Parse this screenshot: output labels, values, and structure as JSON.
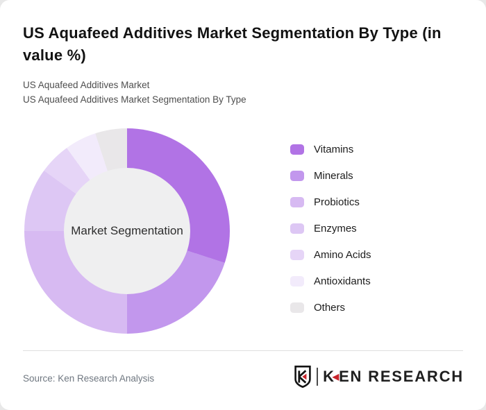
{
  "page": {
    "title": "US Aquafeed Additives Market Segmentation By Type (in value %)",
    "subtitle_line1": "US Aquafeed Additives Market",
    "subtitle_line2": "US Aquafeed Additives Market Segmentation By Type"
  },
  "chart_data": {
    "type": "pie",
    "donut": true,
    "title": "US Aquafeed Additives Market Segmentation By Type (in value %)",
    "center_label": "Market Segmentation",
    "categories": [
      "Vitamins",
      "Minerals",
      "Probiotics",
      "Enzymes",
      "Amino Acids",
      "Antioxidants",
      "Others"
    ],
    "values": [
      30,
      20,
      25,
      10,
      5,
      5,
      5
    ],
    "unit": "value %",
    "colors": [
      "#b173e5",
      "#c297ed",
      "#d7baf2",
      "#ddc7f4",
      "#e6d5f7",
      "#f2ebfb",
      "#e9e7e9"
    ],
    "hole_color": "#efeff0",
    "start_angle_deg": 0,
    "legend_position": "right",
    "data_labels": false
  },
  "footer": {
    "source": "Source: Ken Research Analysis",
    "logo_mark_letter": "K",
    "logo_text_part1": "K",
    "logo_text_part2": "EN RESEARCH",
    "brand_red": "#c8242b"
  }
}
